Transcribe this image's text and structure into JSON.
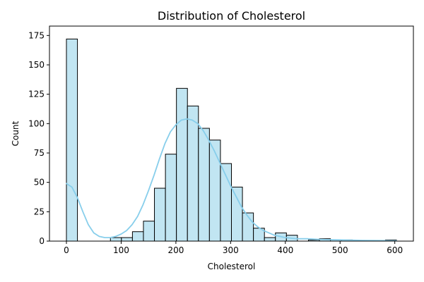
{
  "chart_data": {
    "type": "bar",
    "title": "Distribution of Cholesterol",
    "xlabel": "Cholesterol",
    "ylabel": "Count",
    "xlim": [
      -31,
      634
    ],
    "ylim": [
      0,
      183
    ],
    "xticks": [
      0,
      100,
      200,
      300,
      400,
      500,
      600
    ],
    "yticks": [
      0,
      25,
      50,
      75,
      100,
      125,
      150,
      175
    ],
    "bin_width": 20.1,
    "bins": [
      {
        "start": 0,
        "count": 172
      },
      {
        "start": 20.1,
        "count": 0
      },
      {
        "start": 40.2,
        "count": 0
      },
      {
        "start": 60.3,
        "count": 0
      },
      {
        "start": 80.4,
        "count": 3
      },
      {
        "start": 100.5,
        "count": 3
      },
      {
        "start": 120.6,
        "count": 8
      },
      {
        "start": 140.7,
        "count": 17
      },
      {
        "start": 160.8,
        "count": 45
      },
      {
        "start": 180.9,
        "count": 74
      },
      {
        "start": 201.0,
        "count": 130
      },
      {
        "start": 221.1,
        "count": 115
      },
      {
        "start": 241.2,
        "count": 96
      },
      {
        "start": 261.3,
        "count": 86
      },
      {
        "start": 281.4,
        "count": 66
      },
      {
        "start": 301.5,
        "count": 46
      },
      {
        "start": 321.6,
        "count": 24
      },
      {
        "start": 341.7,
        "count": 11
      },
      {
        "start": 361.8,
        "count": 3
      },
      {
        "start": 381.9,
        "count": 7
      },
      {
        "start": 402.0,
        "count": 5
      },
      {
        "start": 422.1,
        "count": 0
      },
      {
        "start": 442.2,
        "count": 1
      },
      {
        "start": 462.3,
        "count": 2
      },
      {
        "start": 482.4,
        "count": 1
      },
      {
        "start": 502.5,
        "count": 1
      },
      {
        "start": 522.6,
        "count": 0
      },
      {
        "start": 542.7,
        "count": 0
      },
      {
        "start": 562.8,
        "count": 0
      },
      {
        "start": 582.9,
        "count": 1
      }
    ],
    "kde": {
      "x": [
        0,
        10,
        20,
        30,
        40,
        50,
        60,
        70,
        80,
        90,
        100,
        110,
        120,
        130,
        140,
        150,
        160,
        170,
        180,
        190,
        200,
        210,
        220,
        230,
        240,
        250,
        260,
        270,
        280,
        290,
        300,
        310,
        320,
        330,
        340,
        350,
        360,
        370,
        380,
        390,
        400,
        420,
        440,
        460,
        480,
        500,
        520,
        540,
        560,
        580,
        603
      ],
      "y": [
        49,
        46,
        37,
        25,
        14,
        7,
        4,
        3,
        3,
        4,
        6,
        9,
        14,
        21,
        31,
        43,
        56,
        70,
        83,
        93,
        99,
        103,
        104,
        103,
        100,
        94,
        86,
        77,
        67,
        57,
        47,
        38,
        29,
        22,
        16,
        12,
        9,
        7,
        5,
        4,
        3,
        2,
        2,
        1.5,
        1.2,
        1,
        0.8,
        0.6,
        0.5,
        0.4,
        0.3
      ]
    },
    "colors": {
      "bar_fill": "#c1e5f2",
      "bar_edge": "#000000",
      "kde_line": "#87ceeb"
    },
    "grid": false,
    "legend": "none"
  }
}
